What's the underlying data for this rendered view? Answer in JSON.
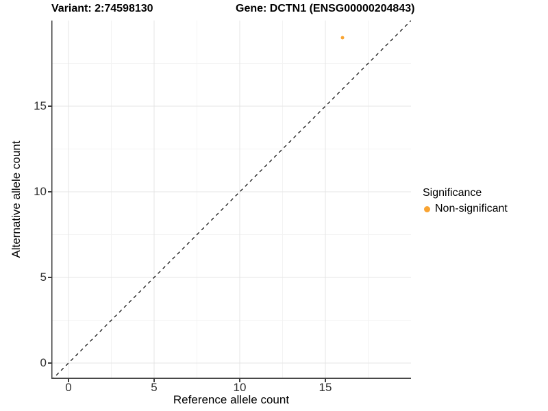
{
  "chart_data": {
    "type": "scatter",
    "title_left": "Variant: 2:74598130",
    "title_right": "Gene: DCTN1 (ENSG00000204843)",
    "xlabel": "Reference allele count",
    "ylabel": "Alternative allele count",
    "xlim": [
      -1,
      20
    ],
    "ylim": [
      -1,
      20
    ],
    "x_ticks": [
      0,
      5,
      10,
      15
    ],
    "y_ticks": [
      0,
      5,
      10,
      15
    ],
    "x_minor_ticks": [
      2.5,
      7.5,
      12.5,
      17.5
    ],
    "y_minor_ticks": [
      2.5,
      7.5,
      12.5,
      17.5
    ],
    "grid": "on",
    "points": [
      {
        "x": 16,
        "y": 19,
        "series": "Non-significant"
      }
    ],
    "reference_line": {
      "type": "identity",
      "style": "dashed",
      "color": "#111111"
    },
    "legend": {
      "title": "Significance",
      "position": "right",
      "entries": [
        {
          "label": "Non-significant",
          "color": "#F9A432"
        }
      ]
    },
    "style": {
      "point_color": "#F9A432",
      "axis_line_color": "#3d3d3d",
      "grid_major_color": "#E4E4E4",
      "grid_minor_color": "#F3F3F3",
      "background": "#FFFFFF"
    }
  }
}
